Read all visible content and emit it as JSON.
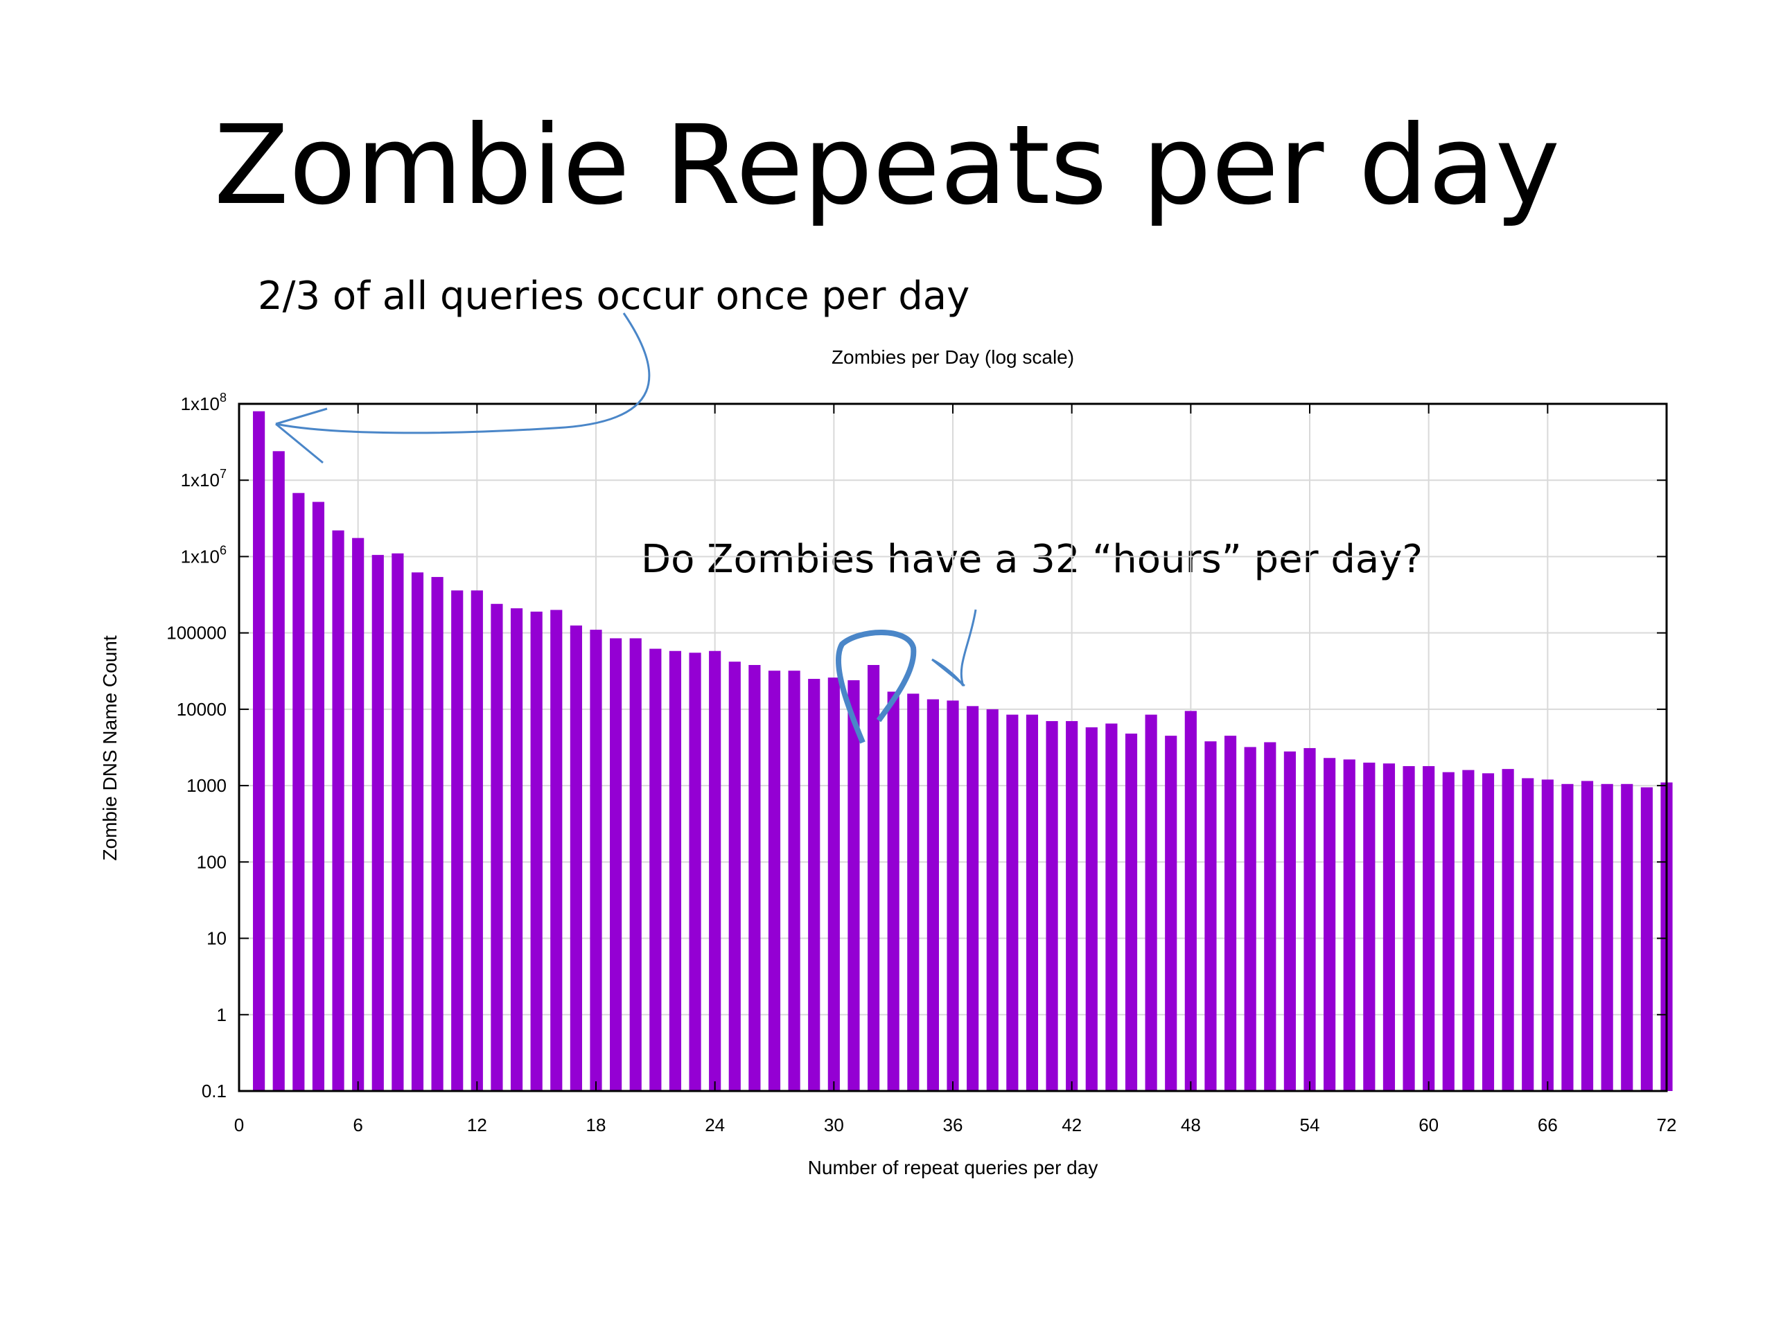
{
  "slide": {
    "title": "Zombie Repeats per day",
    "annotation_once": "2/3 of all queries occur once per day",
    "annotation_32": "Do Zombies have a 32 “hours” per day?"
  },
  "chart_data": {
    "type": "bar",
    "title": "Zombies per Day (log scale)",
    "xlabel": "Number of repeat queries per day",
    "ylabel": "Zombie DNS Name Count",
    "yscale": "log",
    "xlim": [
      0,
      72
    ],
    "ylim": [
      0.1,
      100000000
    ],
    "grid": true,
    "legend": "none",
    "bar_color": "#9400D3",
    "annotation_color": "#4A86C8",
    "x_ticks": [
      "0",
      "6",
      "12",
      "18",
      "24",
      "30",
      "36",
      "42",
      "48",
      "54",
      "60",
      "66",
      "72"
    ],
    "y_ticks": [
      {
        "value": 0.1,
        "label": "0.1"
      },
      {
        "value": 1,
        "label": "1"
      },
      {
        "value": 10,
        "label": "10"
      },
      {
        "value": 100,
        "label": "100"
      },
      {
        "value": 1000,
        "label": "1000"
      },
      {
        "value": 10000,
        "label": "10000"
      },
      {
        "value": 100000,
        "label": "100000"
      },
      {
        "value": 1000000,
        "label": "1x10",
        "sup": "6"
      },
      {
        "value": 10000000,
        "label": "1x10",
        "sup": "7"
      },
      {
        "value": 100000000,
        "label": "1x10",
        "sup": "8"
      }
    ],
    "x": [
      1,
      2,
      3,
      4,
      5,
      6,
      7,
      8,
      9,
      10,
      11,
      12,
      13,
      14,
      15,
      16,
      17,
      18,
      19,
      20,
      21,
      22,
      23,
      24,
      25,
      26,
      27,
      28,
      29,
      30,
      31,
      32,
      33,
      34,
      35,
      36,
      37,
      38,
      39,
      40,
      41,
      42,
      43,
      44,
      45,
      46,
      47,
      48,
      49,
      50,
      51,
      52,
      53,
      54,
      55,
      56,
      57,
      58,
      59,
      60,
      61,
      62,
      63,
      64,
      65,
      66,
      67,
      68,
      69,
      70,
      71,
      72
    ],
    "values": [
      80000000,
      24000000,
      6800000,
      5200000,
      2200000,
      1750000,
      1050000,
      1100000,
      620000,
      540000,
      360000,
      360000,
      240000,
      210000,
      190000,
      200000,
      125000,
      110000,
      85000,
      85000,
      62000,
      58000,
      55000,
      58000,
      42000,
      38000,
      32000,
      32000,
      25000,
      26000,
      24000,
      38000,
      17000,
      16000,
      13500,
      13000,
      11000,
      10000,
      8500,
      8500,
      7000,
      7000,
      5800,
      6500,
      4800,
      8500,
      4500,
      9500,
      3800,
      4500,
      3200,
      3700,
      2800,
      3100,
      2300,
      2200,
      2000,
      1950,
      1800,
      1800,
      1500,
      1600,
      1450,
      1650,
      1250,
      1200,
      1050,
      1150,
      1050,
      1050,
      950,
      1100
    ]
  }
}
